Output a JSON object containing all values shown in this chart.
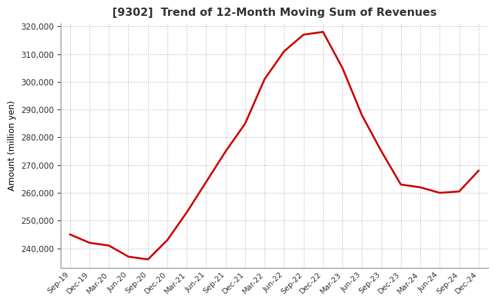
{
  "title": "[9302]  Trend of 12-Month Moving Sum of Revenues",
  "ylabel": "Amount (million yen)",
  "line_color": "#cc0000",
  "background_color": "#ffffff",
  "grid_color": "#b0b0b0",
  "x_labels": [
    "Sep-19",
    "Dec-19",
    "Mar-20",
    "Jun-20",
    "Sep-20",
    "Dec-20",
    "Mar-21",
    "Jun-21",
    "Sep-21",
    "Dec-21",
    "Mar-22",
    "Jun-22",
    "Sep-22",
    "Dec-22",
    "Mar-23",
    "Jun-23",
    "Sep-23",
    "Dec-23",
    "Mar-24",
    "Jun-24",
    "Sep-24",
    "Dec-24"
  ],
  "values": [
    245000,
    242000,
    241000,
    237000,
    236000,
    243000,
    253000,
    264000,
    275000,
    285000,
    301000,
    311000,
    317000,
    318000,
    305000,
    288000,
    275000,
    263000,
    262000,
    260000,
    260500,
    268000
  ],
  "ylim": [
    233000,
    321000
  ],
  "yticks": [
    240000,
    250000,
    260000,
    270000,
    280000,
    290000,
    300000,
    310000,
    320000
  ]
}
